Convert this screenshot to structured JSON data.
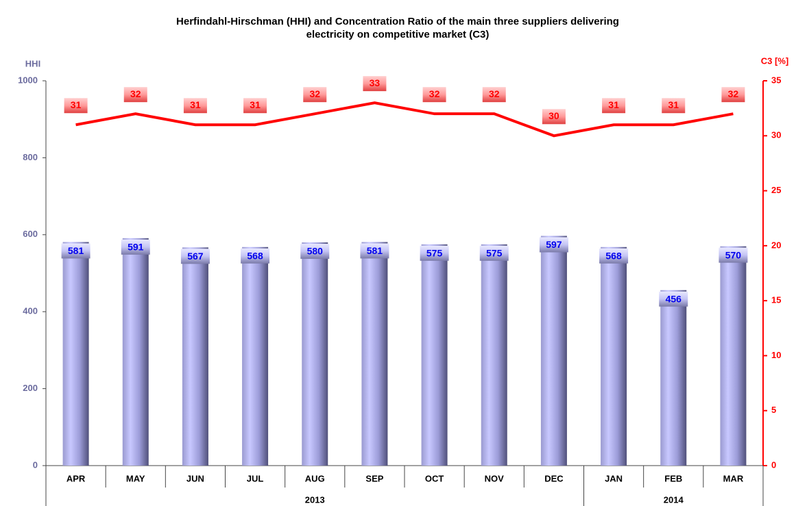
{
  "chart_data": {
    "type": "bar_line",
    "title": [
      "Herfindahl-Hirschman (HHI) and Concentration Ratio of the main three suppliers delivering",
      "electricity on competitive market (C3)"
    ],
    "y_label": "HHI",
    "y2_label": "C3 [%]",
    "categories": [
      "APR",
      "MAY",
      "JUN",
      "JUL",
      "AUG",
      "SEP",
      "OCT",
      "NOV",
      "DEC",
      "JAN",
      "FEB",
      "MAR"
    ],
    "groups": [
      {
        "label": "2013",
        "size": 9
      },
      {
        "label": "2014",
        "size": 3
      }
    ],
    "series": [
      {
        "name": "HHI",
        "type": "bar",
        "axis": "y",
        "color": "#b8b8f0",
        "values": [
          581,
          591,
          567,
          568,
          580,
          581,
          575,
          575,
          597,
          568,
          456,
          570
        ]
      },
      {
        "name": "C3",
        "type": "line",
        "axis": "y2",
        "color": "#ff0000",
        "values": [
          31,
          32,
          31,
          31,
          32,
          33,
          32,
          32,
          30,
          31,
          31,
          32
        ]
      }
    ],
    "ylim": [
      0,
      1000
    ],
    "yticks": [
      0,
      200,
      400,
      600,
      800,
      1000
    ],
    "y2lim": [
      0,
      35
    ],
    "y2ticks": [
      0,
      5,
      10,
      15,
      20,
      25,
      30,
      35
    ],
    "grid": false
  }
}
